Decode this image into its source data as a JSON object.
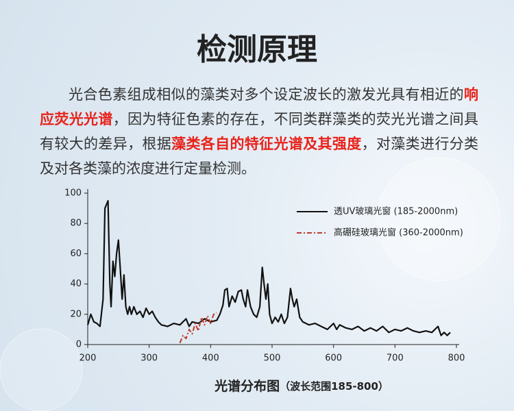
{
  "title": "检测原理",
  "paragraph": [
    {
      "text": "光合色素组成相似的藻类对多个设定波长的激发光具有相近的",
      "emphasis": false
    },
    {
      "text": "响应荧光光谱",
      "emphasis": true
    },
    {
      "text": "，因为特征色素的存在，不同类群藻类的荧光光谱之间具有较大的差异，根据",
      "emphasis": false
    },
    {
      "text": "藻类各自的特征光谱及其强度",
      "emphasis": true
    },
    {
      "text": "，对藻类进行分类及对各类藻的浓度进行定量检测。",
      "emphasis": false
    }
  ],
  "emphasis_color": "#e8221a",
  "chart_data": {
    "type": "line",
    "title": "光谱分布图",
    "subtitle": "（波长范围185-800）",
    "xlim": [
      200,
      800
    ],
    "ylim": [
      0,
      100
    ],
    "xticks": [
      200,
      300,
      400,
      500,
      600,
      700,
      800
    ],
    "yticks": [
      0,
      20,
      40,
      60,
      80,
      100
    ],
    "legend": "top-right",
    "series": [
      {
        "name": "透UV玻璃光窗 (185-2000nm)",
        "color": "#111111",
        "dash": false,
        "x": [
          200,
          205,
          210,
          215,
          220,
          225,
          228,
          231,
          233,
          236,
          238,
          241,
          244,
          247,
          250,
          253,
          256,
          259,
          262,
          265,
          268,
          271,
          275,
          280,
          285,
          290,
          295,
          300,
          305,
          310,
          315,
          320,
          330,
          340,
          350,
          360,
          365,
          370,
          380,
          390,
          400,
          410,
          415,
          420,
          423,
          427,
          430,
          435,
          440,
          445,
          450,
          453,
          457,
          460,
          465,
          470,
          475,
          480,
          484,
          487,
          490,
          493,
          496,
          500,
          505,
          510,
          515,
          520,
          525,
          530,
          533,
          536,
          540,
          545,
          550,
          560,
          570,
          580,
          590,
          600,
          605,
          610,
          620,
          630,
          640,
          650,
          660,
          670,
          680,
          690,
          700,
          710,
          720,
          730,
          740,
          750,
          760,
          770,
          775,
          780,
          785,
          790
        ],
        "values": [
          13,
          20,
          15,
          14,
          12,
          30,
          90,
          93,
          95,
          40,
          25,
          55,
          45,
          60,
          69,
          50,
          30,
          46,
          25,
          20,
          25,
          20,
          25,
          20,
          22,
          18,
          24,
          20,
          22,
          18,
          15,
          13,
          12,
          14,
          13,
          17,
          12,
          15,
          14,
          17,
          15,
          16,
          20,
          26,
          36,
          37,
          25,
          32,
          28,
          35,
          36,
          30,
          25,
          36,
          25,
          20,
          18,
          25,
          51,
          40,
          30,
          40,
          20,
          14,
          18,
          15,
          20,
          14,
          18,
          37,
          30,
          25,
          30,
          18,
          15,
          13,
          14,
          12,
          10,
          14,
          10,
          13,
          11,
          10,
          12,
          9,
          11,
          9,
          12,
          8,
          10,
          9,
          11,
          9,
          8,
          9,
          8,
          12,
          6,
          8,
          6,
          8
        ]
      },
      {
        "name": "高硼硅玻璃光窗 (360-2000nm)",
        "color": "#c0392b",
        "dash": true,
        "x": [
          350,
          355,
          360,
          365,
          370,
          375,
          380,
          385,
          390,
          395,
          400,
          405,
          410
        ],
        "values": [
          1,
          6,
          4,
          10,
          7,
          14,
          9,
          18,
          13,
          19,
          14,
          20,
          21
        ]
      }
    ]
  }
}
